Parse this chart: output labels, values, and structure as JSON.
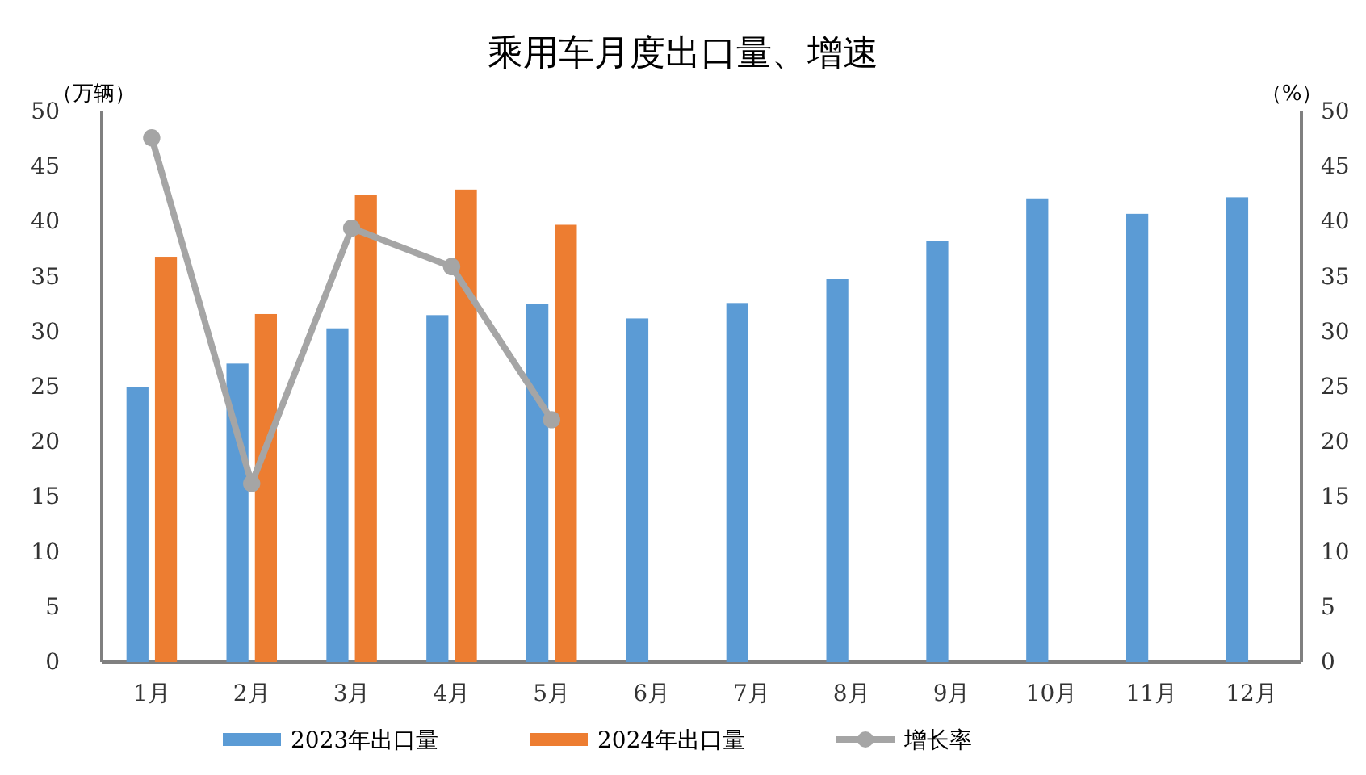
{
  "chart_data": {
    "type": "bar",
    "title": "乘用车月度出口量、增速",
    "ylabel": "（万辆）",
    "y2label": "（%）",
    "categories": [
      "1月",
      "2月",
      "3月",
      "4月",
      "5月",
      "6月",
      "7月",
      "8月",
      "9月",
      "10月",
      "11月",
      "12月"
    ],
    "series": [
      {
        "name": "2023年出口量",
        "color": "#5b9bd5",
        "values": [
          25.0,
          27.1,
          30.3,
          31.5,
          32.5,
          31.2,
          32.6,
          34.8,
          38.2,
          42.1,
          40.7,
          42.2
        ]
      },
      {
        "name": "2024年出口量",
        "color": "#ed7d31",
        "values": [
          36.8,
          31.6,
          42.4,
          42.9,
          39.7,
          null,
          null,
          null,
          null,
          null,
          null,
          null
        ]
      },
      {
        "name": "增长率",
        "type": "line",
        "axis": "y2",
        "color": "#a5a5a5",
        "values": [
          47.6,
          16.2,
          39.4,
          35.9,
          22.0,
          null,
          null,
          null,
          null,
          null,
          null,
          null
        ]
      }
    ],
    "ylim": [
      0,
      50
    ],
    "yticks": [
      0,
      5,
      10,
      15,
      20,
      25,
      30,
      35,
      40,
      45,
      50
    ],
    "y2lim": [
      0,
      50
    ],
    "y2ticks": [
      0,
      5,
      10,
      15,
      20,
      25,
      30,
      35,
      40,
      45,
      50
    ],
    "marker": "circle",
    "legend": "bottom",
    "grid": false
  }
}
